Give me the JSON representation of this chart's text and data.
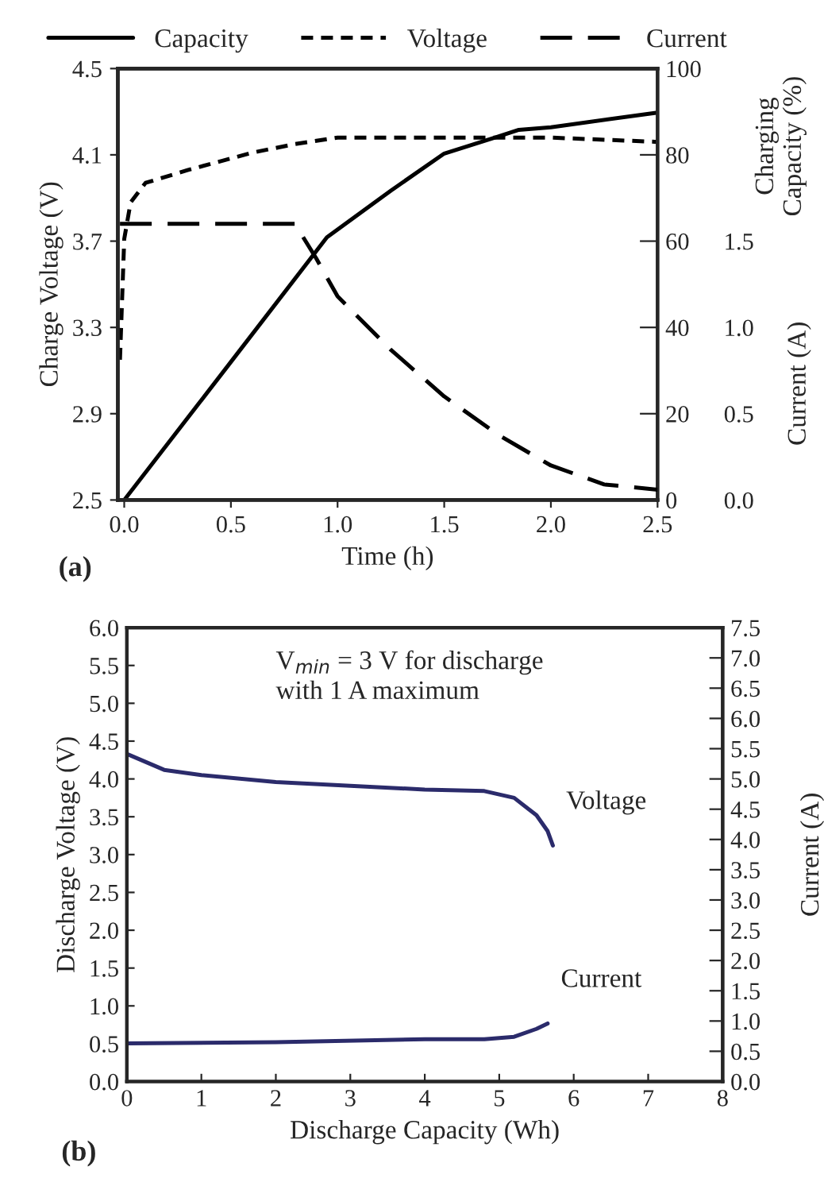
{
  "chart_data": [
    {
      "type": "line",
      "xlabel": "Time (h)",
      "ylabel": "Charge Voltage (V)",
      "y2label": "Charging\nCapacity (%)",
      "y3label": "Current (A)",
      "xlim": [
        -0.03,
        2.5
      ],
      "xticks": [
        {
          "value": 0,
          "label": "0.0"
        },
        0.5,
        {
          "value": 1,
          "label": "1.0"
        },
        1.5,
        {
          "value": 2,
          "label": "2.0"
        },
        2.5
      ],
      "ylim": [
        2.5,
        4.5
      ],
      "yticks": [
        2.5,
        2.9,
        3.3,
        3.7,
        4.1,
        4.5
      ],
      "y2lim": [
        0,
        100
      ],
      "y2ticks": [
        0,
        20,
        40,
        60,
        80,
        100
      ],
      "y3lim": [
        0,
        2.5
      ],
      "y3ticks": [
        {
          "value": 0,
          "label": "0.0"
        },
        0.5,
        {
          "value": 1,
          "label": "1.0"
        },
        1.5
      ],
      "grid": false,
      "legend": "top",
      "series": [
        {
          "name": "Capacity",
          "color": "#000000",
          "line_style": "solid",
          "axis": "y2",
          "x": [
            0.0,
            0.5,
            0.95,
            1.25,
            1.5,
            1.75,
            1.85,
            2.0,
            2.5
          ],
          "values": [
            0,
            32,
            60.9,
            71.7,
            80.3,
            84.2,
            85.8,
            86.4,
            89.8
          ]
        },
        {
          "name": "Voltage",
          "color": "#000000",
          "line_style": "dotted",
          "x": [
            -0.02,
            0.0,
            0.03,
            0.1,
            0.3,
            0.6,
            0.8,
            1.0,
            1.5,
            1.8,
            2.0,
            2.5
          ],
          "values": [
            3.15,
            3.71,
            3.88,
            3.97,
            4.03,
            4.11,
            4.15,
            4.18,
            4.18,
            4.18,
            4.18,
            4.16
          ]
        },
        {
          "name": "Current",
          "color": "#000000",
          "line_style": "dashed",
          "axis": "y3",
          "x": [
            -0.02,
            0.8,
            0.9,
            1.0,
            1.25,
            1.5,
            1.75,
            2.0,
            2.25,
            2.5
          ],
          "values": [
            1.6,
            1.6,
            1.4,
            1.18,
            0.87,
            0.6,
            0.38,
            0.2,
            0.09,
            0.06
          ]
        }
      ],
      "annotations": [
        "(a)"
      ]
    },
    {
      "type": "line",
      "xlabel": "Discharge Capacity (Wh)",
      "ylabel": "Discharge Voltage (V)",
      "y2label": "Current (A)",
      "xlim": [
        0,
        8
      ],
      "xticks": [
        0,
        1,
        2,
        3,
        4,
        5,
        6,
        7,
        8
      ],
      "ylim": [
        0,
        6
      ],
      "yticks": [
        {
          "value": 0,
          "label": "0.0"
        },
        0.5,
        {
          "value": 1,
          "label": "1.0"
        },
        1.5,
        {
          "value": 2,
          "label": "2.0"
        },
        2.5,
        {
          "value": 3,
          "label": "3.0"
        },
        3.5,
        {
          "value": 4,
          "label": "4.0"
        },
        4.5,
        {
          "value": 5,
          "label": "5.0"
        },
        5.5,
        {
          "value": 6,
          "label": "6.0"
        }
      ],
      "y2lim": [
        0,
        7.5
      ],
      "y2ticks": [
        {
          "value": 0,
          "label": "0.0"
        },
        0.5,
        {
          "value": 1,
          "label": "1.0"
        },
        1.5,
        {
          "value": 2,
          "label": "2.0"
        },
        2.5,
        {
          "value": 3,
          "label": "3.0"
        },
        3.5,
        {
          "value": 4,
          "label": "4.0"
        },
        4.5,
        {
          "value": 5,
          "label": "5.0"
        },
        5.5,
        {
          "value": 6,
          "label": "6.0"
        },
        6.5,
        {
          "value": 7,
          "label": "7.0"
        },
        7.5
      ],
      "grid": false,
      "series": [
        {
          "color": "#2b2b6b",
          "line_style": "solid",
          "x": [
            0,
            0.5,
            1,
            2,
            3,
            4,
            4.8,
            5.2,
            5.5,
            5.65,
            5.72
          ],
          "values": [
            4.33,
            4.12,
            4.05,
            3.96,
            3.91,
            3.86,
            3.84,
            3.75,
            3.52,
            3.31,
            3.12
          ]
        },
        {
          "color": "#2b2b6b",
          "line_style": "solid",
          "axis": "y2",
          "x": [
            0,
            2,
            4,
            4.8,
            5.2,
            5.5,
            5.65
          ],
          "values": [
            0.63,
            0.65,
            0.7,
            0.7,
            0.74,
            0.87,
            0.96
          ]
        }
      ],
      "annotations": [
        "V$_{min}$ = 3 V for discharge\nwith 1 A maximum",
        "Voltage",
        "Current",
        "(b)"
      ]
    }
  ]
}
